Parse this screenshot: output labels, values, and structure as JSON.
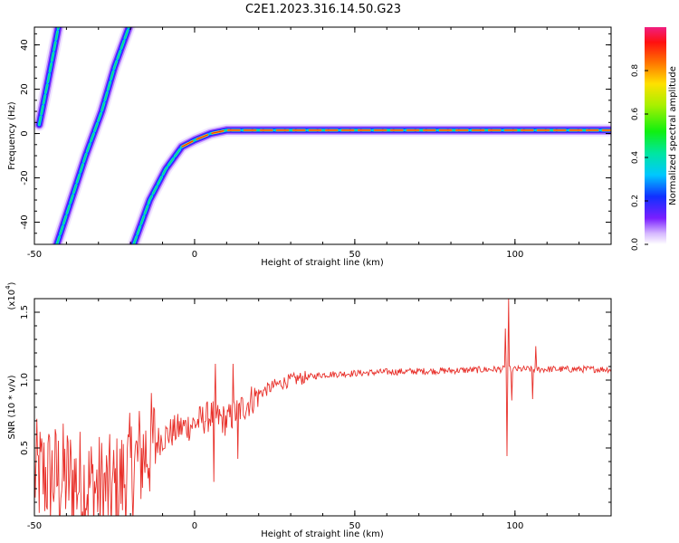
{
  "title": "C2E1.2023.316.14.50.G23",
  "chart_data": [
    {
      "type": "heatmap",
      "xlabel": "Height of straight line (km)",
      "ylabel": "Frequency (Hz)",
      "xlim": [
        -50,
        130
      ],
      "ylim": [
        -50,
        48
      ],
      "xticks": [
        "-50",
        "0",
        "50",
        "100"
      ],
      "yticks": [
        "-40",
        "-20",
        "0",
        "20",
        "40"
      ],
      "colorbar": {
        "label": "Normalized spectral amplitude",
        "range": [
          0,
          1
        ],
        "ticks": [
          "0.0",
          "0.2",
          "0.4",
          "0.6",
          "0.8"
        ]
      },
      "features": [
        {
          "name": "alias-left",
          "points": [
            [
              -48.5,
              4
            ],
            [
              -46,
              22
            ],
            [
              -42.5,
              48
            ]
          ]
        },
        {
          "name": "alias-middle",
          "points": [
            [
              -43,
              -50
            ],
            [
              -38.5,
              -30
            ],
            [
              -34,
              -10
            ],
            [
              -29,
              10
            ],
            [
              -25,
              30
            ],
            [
              -20.5,
              48
            ]
          ]
        },
        {
          "name": "main-trace",
          "points": [
            [
              -19,
              -50
            ],
            [
              -14,
              -30
            ],
            [
              -9,
              -16
            ],
            [
              -4,
              -6
            ],
            [
              0,
              -3
            ],
            [
              5,
              0
            ],
            [
              10,
              1.5
            ],
            [
              20,
              1.5
            ],
            [
              60,
              1.5
            ],
            [
              100,
              1.5
            ],
            [
              130,
              1.5
            ]
          ]
        }
      ]
    },
    {
      "type": "line",
      "xlabel": "Height of straight line (km)",
      "ylabel": "SNR (10 * v/v)",
      "multiplier": "(x10",
      "multiplier_exp": "4",
      "xlim": [
        -50,
        130
      ],
      "ylim": [
        0,
        1.6
      ],
      "xticks": [
        "-50",
        "0",
        "50",
        "100"
      ],
      "yticks": [
        "0.5",
        "1.0",
        "1.5"
      ],
      "line_color": "#e8302a",
      "profile": [
        {
          "x": -50,
          "y": 0.3
        },
        {
          "x": -40,
          "y": 0.28
        },
        {
          "x": -30,
          "y": 0.2
        },
        {
          "x": -25,
          "y": 0.18
        },
        {
          "x": -20,
          "y": 0.35
        },
        {
          "x": -15,
          "y": 0.48
        },
        {
          "x": -10,
          "y": 0.58
        },
        {
          "x": -5,
          "y": 0.64
        },
        {
          "x": 0,
          "y": 0.68
        },
        {
          "x": 5,
          "y": 0.74
        },
        {
          "x": 10,
          "y": 0.7
        },
        {
          "x": 15,
          "y": 0.8
        },
        {
          "x": 20,
          "y": 0.9
        },
        {
          "x": 25,
          "y": 0.96
        },
        {
          "x": 30,
          "y": 1.0
        },
        {
          "x": 40,
          "y": 1.04
        },
        {
          "x": 50,
          "y": 1.05
        },
        {
          "x": 60,
          "y": 1.06
        },
        {
          "x": 80,
          "y": 1.07
        },
        {
          "x": 95,
          "y": 1.08
        },
        {
          "x": 110,
          "y": 1.08
        },
        {
          "x": 130,
          "y": 1.08
        }
      ],
      "spikes": [
        {
          "x": 6,
          "y": 0.25
        },
        {
          "x": 6.5,
          "y": 1.12
        },
        {
          "x": 12,
          "y": 1.12
        },
        {
          "x": 13.5,
          "y": 0.42
        },
        {
          "x": 97,
          "y": 1.38
        },
        {
          "x": 97.5,
          "y": 0.44
        },
        {
          "x": 98,
          "y": 1.6
        },
        {
          "x": 99,
          "y": 0.85
        },
        {
          "x": 105.5,
          "y": 0.86
        },
        {
          "x": 106.5,
          "y": 1.25
        }
      ]
    }
  ]
}
